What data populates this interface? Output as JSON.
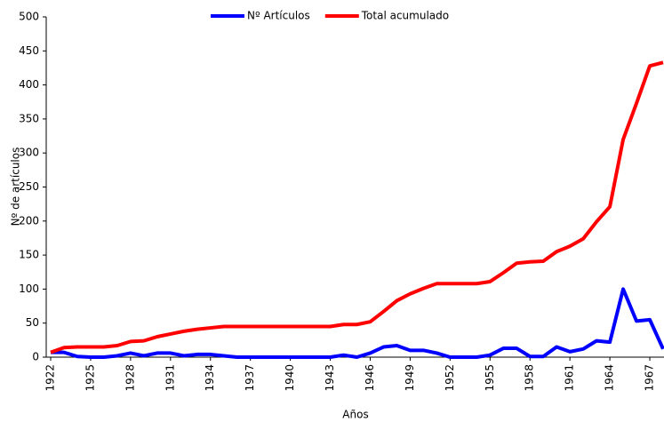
{
  "chart_data": {
    "type": "line",
    "x_label": "Años",
    "y_label": "Nº de artículos",
    "x": [
      1922,
      1923,
      1924,
      1925,
      1926,
      1927,
      1928,
      1929,
      1930,
      1931,
      1932,
      1933,
      1934,
      1935,
      1936,
      1937,
      1938,
      1939,
      1940,
      1941,
      1942,
      1943,
      1944,
      1945,
      1946,
      1947,
      1948,
      1949,
      1950,
      1951,
      1952,
      1953,
      1954,
      1955,
      1956,
      1957,
      1958,
      1959,
      1960,
      1961,
      1962,
      1963,
      1964,
      1965,
      1966,
      1967,
      1968
    ],
    "series": [
      {
        "name": "Nº Artículos",
        "color": "#0000ff",
        "values": [
          7,
          7,
          1,
          0,
          0,
          2,
          6,
          2,
          6,
          6,
          2,
          4,
          4,
          2,
          0,
          0,
          0,
          0,
          0,
          0,
          0,
          0,
          3,
          0,
          6,
          15,
          17,
          10,
          10,
          6,
          0,
          0,
          0,
          3,
          13,
          13,
          1,
          1,
          15,
          8,
          12,
          24,
          22,
          100,
          53,
          55,
          12
        ]
      },
      {
        "name": "Total acumulado",
        "color": "#ff0000",
        "values": [
          7,
          14,
          15,
          15,
          15,
          17,
          23,
          24,
          30,
          34,
          38,
          41,
          43,
          45,
          45,
          45,
          45,
          45,
          45,
          45,
          45,
          45,
          48,
          48,
          52,
          67,
          83,
          93,
          101,
          108,
          108,
          108,
          108,
          111,
          124,
          138,
          140,
          141,
          155,
          163,
          174,
          199,
          221,
          320,
          373,
          428,
          433
        ]
      }
    ],
    "xlim": [
      1922,
      1968
    ],
    "xticks": [
      1922,
      1925,
      1928,
      1931,
      1934,
      1937,
      1940,
      1943,
      1946,
      1949,
      1952,
      1955,
      1958,
      1961,
      1964,
      1967
    ],
    "ylim": [
      0,
      500
    ],
    "yticks": [
      0,
      50,
      100,
      150,
      200,
      250,
      300,
      350,
      400,
      450,
      500
    ],
    "legend": "top"
  }
}
